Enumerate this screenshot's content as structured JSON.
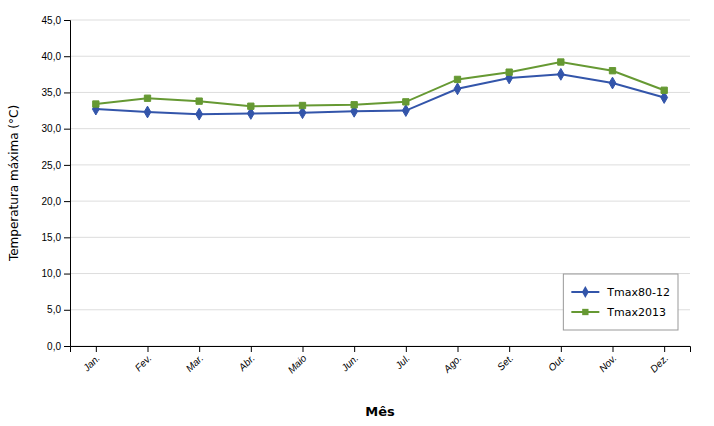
{
  "chart_data": {
    "type": "line",
    "categories": [
      "Jan.",
      "Fev.",
      "Mar.",
      "Abr.",
      "Maio",
      "Jun.",
      "Jul.",
      "Ago.",
      "Set.",
      "Out.",
      "Nov.",
      "Dez."
    ],
    "series": [
      {
        "name": "Tmax80-12",
        "color": "#3355aa",
        "marker": "diamond",
        "values": [
          32.7,
          32.3,
          32.0,
          32.1,
          32.2,
          32.4,
          32.5,
          35.5,
          37.0,
          37.5,
          36.3,
          34.3
        ]
      },
      {
        "name": "Tmax2013",
        "color": "#669933",
        "marker": "square",
        "values": [
          33.4,
          34.2,
          33.8,
          33.1,
          33.2,
          33.3,
          33.7,
          36.8,
          37.8,
          39.2,
          38.0,
          35.3
        ]
      }
    ],
    "xlabel": "Mês",
    "ylabel": "Temperatura máxima (°C)",
    "ylim": [
      0.0,
      45.0
    ],
    "yticks": [
      {
        "value": 0.0,
        "label": "0,0"
      },
      {
        "value": 5.0,
        "label": "5,0"
      },
      {
        "value": 10.0,
        "label": "10,0"
      },
      {
        "value": 15.0,
        "label": "15,0"
      },
      {
        "value": 20.0,
        "label": "20,0"
      },
      {
        "value": 25.0,
        "label": "25,0"
      },
      {
        "value": 30.0,
        "label": "30,0"
      },
      {
        "value": 35.0,
        "label": "35,0"
      },
      {
        "value": 40.0,
        "label": "40,0"
      },
      {
        "value": 45.0,
        "label": "45,0"
      }
    ],
    "grid": true,
    "legend": "lower right"
  }
}
